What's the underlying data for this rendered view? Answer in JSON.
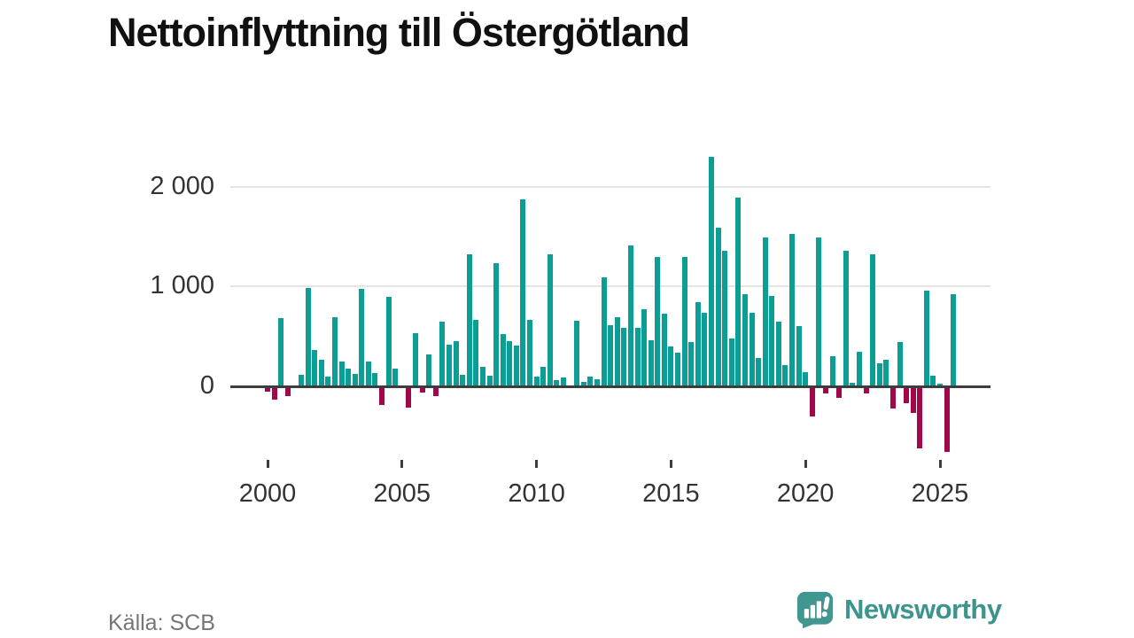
{
  "title": "Nettoinflyttning till Östergötland",
  "source": "Källa: SCB",
  "brand": {
    "name": "Newsworthy"
  },
  "colors": {
    "positive_bar": "#0a9e94",
    "negative_bar": "#a3074a",
    "gridline": "#e4e4e4",
    "zero_axis": "#3d3d3d",
    "tick_text": "#333333",
    "title_text": "#111111",
    "source_text": "#757575",
    "brand_teal": "#3c948c"
  },
  "chart_data": {
    "type": "bar",
    "title": "Nettoinflyttning till Östergötland",
    "xlabel": "",
    "ylabel": "",
    "x_frequency": "quarterly",
    "x_start": "2000-Q1",
    "x_end": "2025-Q3",
    "values": [
      -50,
      -130,
      680,
      -100,
      10,
      115,
      985,
      365,
      265,
      100,
      695,
      250,
      175,
      125,
      975,
      245,
      130,
      -190,
      895,
      175,
      0,
      -210,
      530,
      -60,
      320,
      -95,
      645,
      415,
      450,
      120,
      1325,
      670,
      200,
      105,
      1230,
      525,
      455,
      405,
      1870,
      670,
      100,
      200,
      1320,
      60,
      90,
      10,
      655,
      45,
      95,
      75,
      1090,
      610,
      690,
      590,
      1415,
      590,
      770,
      460,
      1295,
      730,
      400,
      335,
      1300,
      440,
      840,
      740,
      2300,
      1585,
      1360,
      480,
      1890,
      925,
      735,
      280,
      1490,
      905,
      650,
      215,
      1530,
      605,
      140,
      -300,
      1495,
      -70,
      300,
      -115,
      1355,
      40,
      350,
      -70,
      1325,
      230,
      270,
      -220,
      445,
      -170,
      -270,
      -625,
      955,
      105,
      25,
      -655,
      920
    ],
    "xticks": [
      2000,
      2005,
      2010,
      2015,
      2020,
      2025
    ],
    "yticks": [
      {
        "value": 0,
        "label": "0"
      },
      {
        "value": 1000,
        "label": "1 000"
      },
      {
        "value": 2000,
        "label": "2 000"
      }
    ],
    "ylim": [
      -700,
      2400
    ],
    "grid": "horizontal",
    "legend": "none",
    "positive_color": "#0a9e94",
    "negative_color": "#a3074a"
  }
}
